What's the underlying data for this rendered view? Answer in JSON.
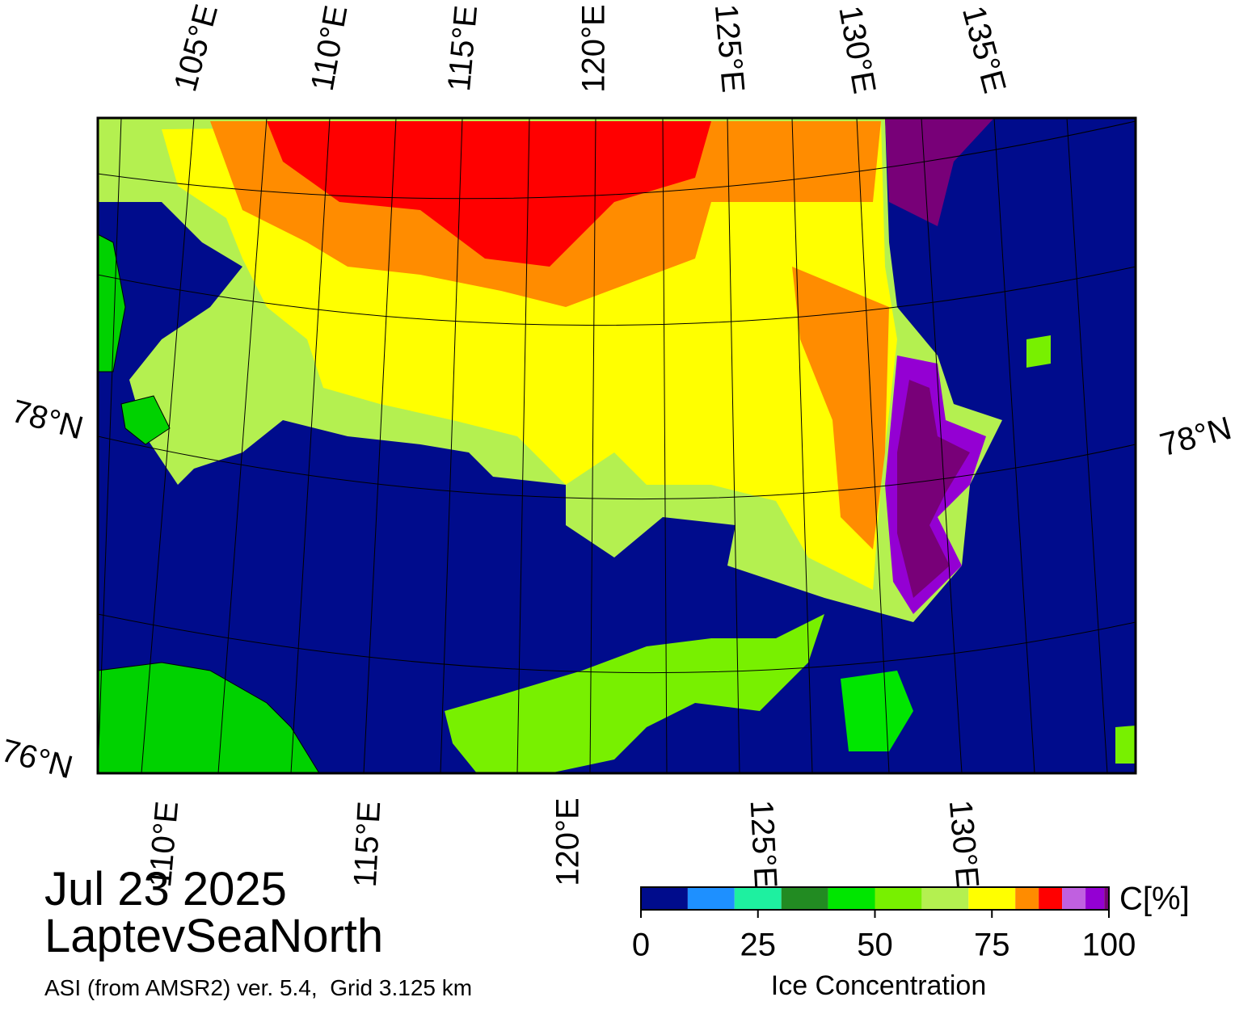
{
  "header": {
    "date": "Jul 23 2025",
    "region": "LaptevSeaNorth",
    "source": "ASI (from AMSR2) ver. 5.4,  Grid 3.125 km"
  },
  "map": {
    "top_labels": [
      "105°E",
      "110°E",
      "115°E",
      "120°E",
      "125°E",
      "130°E",
      "135°E"
    ],
    "bottom_labels": [
      "110°E",
      "115°E",
      "120°E",
      "125°E",
      "130°E"
    ],
    "left_labels": [
      "78°N",
      "76°N"
    ],
    "right_labels": [
      "78°N"
    ]
  },
  "colorbar": {
    "unit": "C[%]",
    "title": "Ice Concentration",
    "range": [
      0,
      100
    ],
    "ticks": [
      0,
      25,
      50,
      75,
      100
    ],
    "bounds": [
      0,
      10,
      20,
      30,
      40,
      50,
      60,
      70,
      80,
      85,
      90,
      95,
      99,
      100
    ],
    "colors": [
      "#000c8c",
      "#1e90ff",
      "#1ef0a0",
      "#228b22",
      "#00e600",
      "#78f000",
      "#b4f050",
      "#ffff00",
      "#ff8c00",
      "#ff0000",
      "#c060e0",
      "#9400d3",
      "#780078"
    ]
  }
}
